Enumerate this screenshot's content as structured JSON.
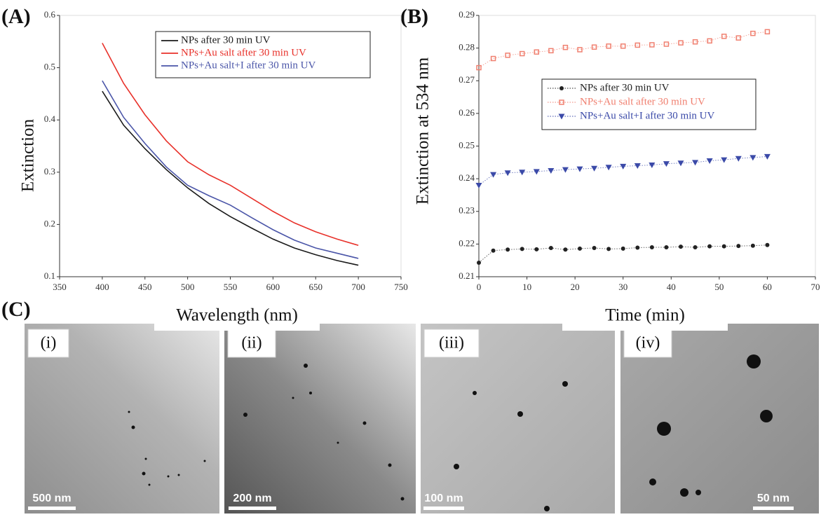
{
  "panels": [
    "(A)",
    "(B)",
    "(C)"
  ],
  "micrographs": [
    {
      "label": "(i)",
      "scale": "500 nm"
    },
    {
      "label": "(ii)",
      "scale": "200 nm"
    },
    {
      "label": "(iii)",
      "scale": "100 nm"
    },
    {
      "label": "(iv)",
      "scale": "50 nm"
    }
  ],
  "chart_data": [
    {
      "type": "line",
      "x_label": "Wavelength (nm)",
      "y_label": "Extinction",
      "x": [
        400,
        425,
        450,
        475,
        500,
        525,
        550,
        575,
        600,
        625,
        650,
        675,
        700
      ],
      "xlim": [
        350,
        750
      ],
      "xticks": [
        350,
        400,
        450,
        500,
        550,
        600,
        650,
        700,
        750
      ],
      "ylim": [
        0.1,
        0.6
      ],
      "yticks": [
        0.1,
        0.2,
        0.3,
        0.4,
        0.5,
        0.6
      ],
      "legend": "top",
      "series": [
        {
          "name": "NPs after 30 min UV",
          "color": "#1a1a1a",
          "values": [
            0.455,
            0.39,
            0.345,
            0.305,
            0.27,
            0.24,
            0.215,
            0.193,
            0.172,
            0.155,
            0.142,
            0.131,
            0.122
          ]
        },
        {
          "name": "NPs+Au salt after 30 min UV",
          "color": "#e8312a",
          "values": [
            0.547,
            0.47,
            0.41,
            0.36,
            0.32,
            0.295,
            0.275,
            0.25,
            0.225,
            0.203,
            0.186,
            0.172,
            0.16
          ]
        },
        {
          "name": "NPs+Au salt+I after 30 min UV",
          "color": "#4a55a8",
          "values": [
            0.475,
            0.405,
            0.355,
            0.31,
            0.275,
            0.255,
            0.237,
            0.213,
            0.19,
            0.17,
            0.155,
            0.145,
            0.135
          ]
        }
      ]
    },
    {
      "type": "scatter",
      "x_label": "Time (min)",
      "y_label": "Extinction at 534 nm",
      "x": [
        0,
        3,
        6,
        9,
        12,
        15,
        18,
        21,
        24,
        27,
        30,
        33,
        36,
        39,
        42,
        45,
        48,
        51,
        54,
        57,
        60
      ],
      "xlim": [
        0,
        70
      ],
      "xticks": [
        0,
        10,
        20,
        30,
        40,
        50,
        60,
        70
      ],
      "ylim": [
        0.21,
        0.29
      ],
      "yticks": [
        0.21,
        0.22,
        0.23,
        0.24,
        0.25,
        0.26,
        0.27,
        0.28,
        0.29
      ],
      "legend": "middle",
      "series": [
        {
          "name": "NPs after 30 min UV",
          "color": "#222222",
          "marker": "circle",
          "values": [
            0.2143,
            0.218,
            0.2183,
            0.2185,
            0.2184,
            0.2188,
            0.2183,
            0.2186,
            0.2188,
            0.2185,
            0.2186,
            0.2189,
            0.219,
            0.219,
            0.2192,
            0.219,
            0.2193,
            0.2193,
            0.2194,
            0.2195,
            0.2197
          ]
        },
        {
          "name": "NPs+Au salt after 30 min UV",
          "color": "#f08070",
          "marker": "square",
          "values": [
            0.274,
            0.2768,
            0.2778,
            0.2783,
            0.2788,
            0.2792,
            0.2802,
            0.2795,
            0.2803,
            0.2806,
            0.2806,
            0.2809,
            0.281,
            0.2812,
            0.2816,
            0.2819,
            0.2822,
            0.2836,
            0.2831,
            0.2845,
            0.285
          ]
        },
        {
          "name": "NPs+Au salt+I after 30 min UV",
          "color": "#3b4aa8",
          "marker": "triangle",
          "values": [
            0.238,
            0.2413,
            0.2418,
            0.242,
            0.2422,
            0.2425,
            0.2428,
            0.243,
            0.2432,
            0.2435,
            0.2438,
            0.244,
            0.2442,
            0.2446,
            0.2448,
            0.245,
            0.2455,
            0.2458,
            0.2462,
            0.2465,
            0.2468
          ]
        }
      ]
    }
  ]
}
